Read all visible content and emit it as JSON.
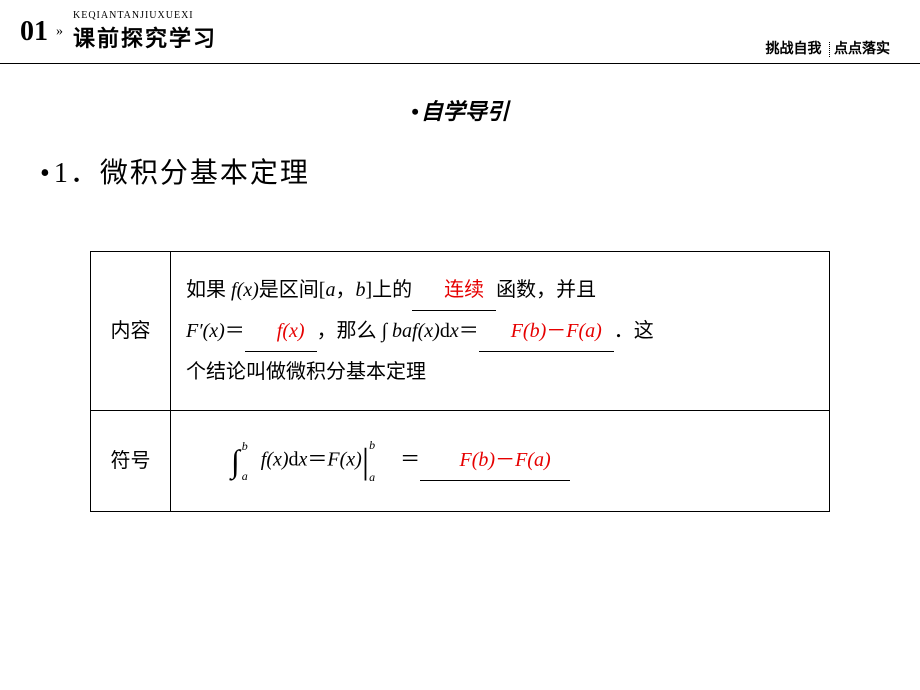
{
  "header": {
    "number": "01",
    "arrows": "»",
    "pinyin": "KEQIANTANJIUXUEXI",
    "title": "课前探究学习",
    "right1": "挑战自我",
    "right2": "点点落实"
  },
  "subtitle": "自学导引",
  "mainHeading": "1．微积分基本定理",
  "table": {
    "row1Label": "内容",
    "row2Label": "符号",
    "content": {
      "part1_prefix": "如果 ",
      "fx": "f",
      "x_paren": "(x)",
      "part1_mid": "是区间[",
      "a": "a",
      "comma": "，",
      "b": "b",
      "part1_suffix": "]上的",
      "blank1": "连续",
      "part1_end": "函数，并且",
      "F_prime": "F′",
      "x_paren2": "(x)",
      "eq": "＝",
      "blank2": "f(x)",
      "part2_mid": "，那么 ",
      "integral_text": "∫",
      "baf": "baf",
      "x_paren3": "(x)",
      "dx": "dx",
      "eq2": "＝",
      "blank3_Fb": "F(b)",
      "blank3_minus": "－",
      "blank3_Fa": "F(a)",
      "part2_end": "．这",
      "part3": "个结论叫做微积分基本定理"
    },
    "symbol": {
      "int_upper": "b",
      "int_lower": "a",
      "fx": "f",
      "x_paren": "(x)",
      "d": "d",
      "x": "x",
      "eq": "＝",
      "Fx": "F(x)",
      "eval_upper": "b",
      "eval_lower": "a",
      "eq2": "＝",
      "blank_Fb": "F(b)",
      "blank_minus": "－",
      "blank_Fa": "F(a)"
    }
  }
}
